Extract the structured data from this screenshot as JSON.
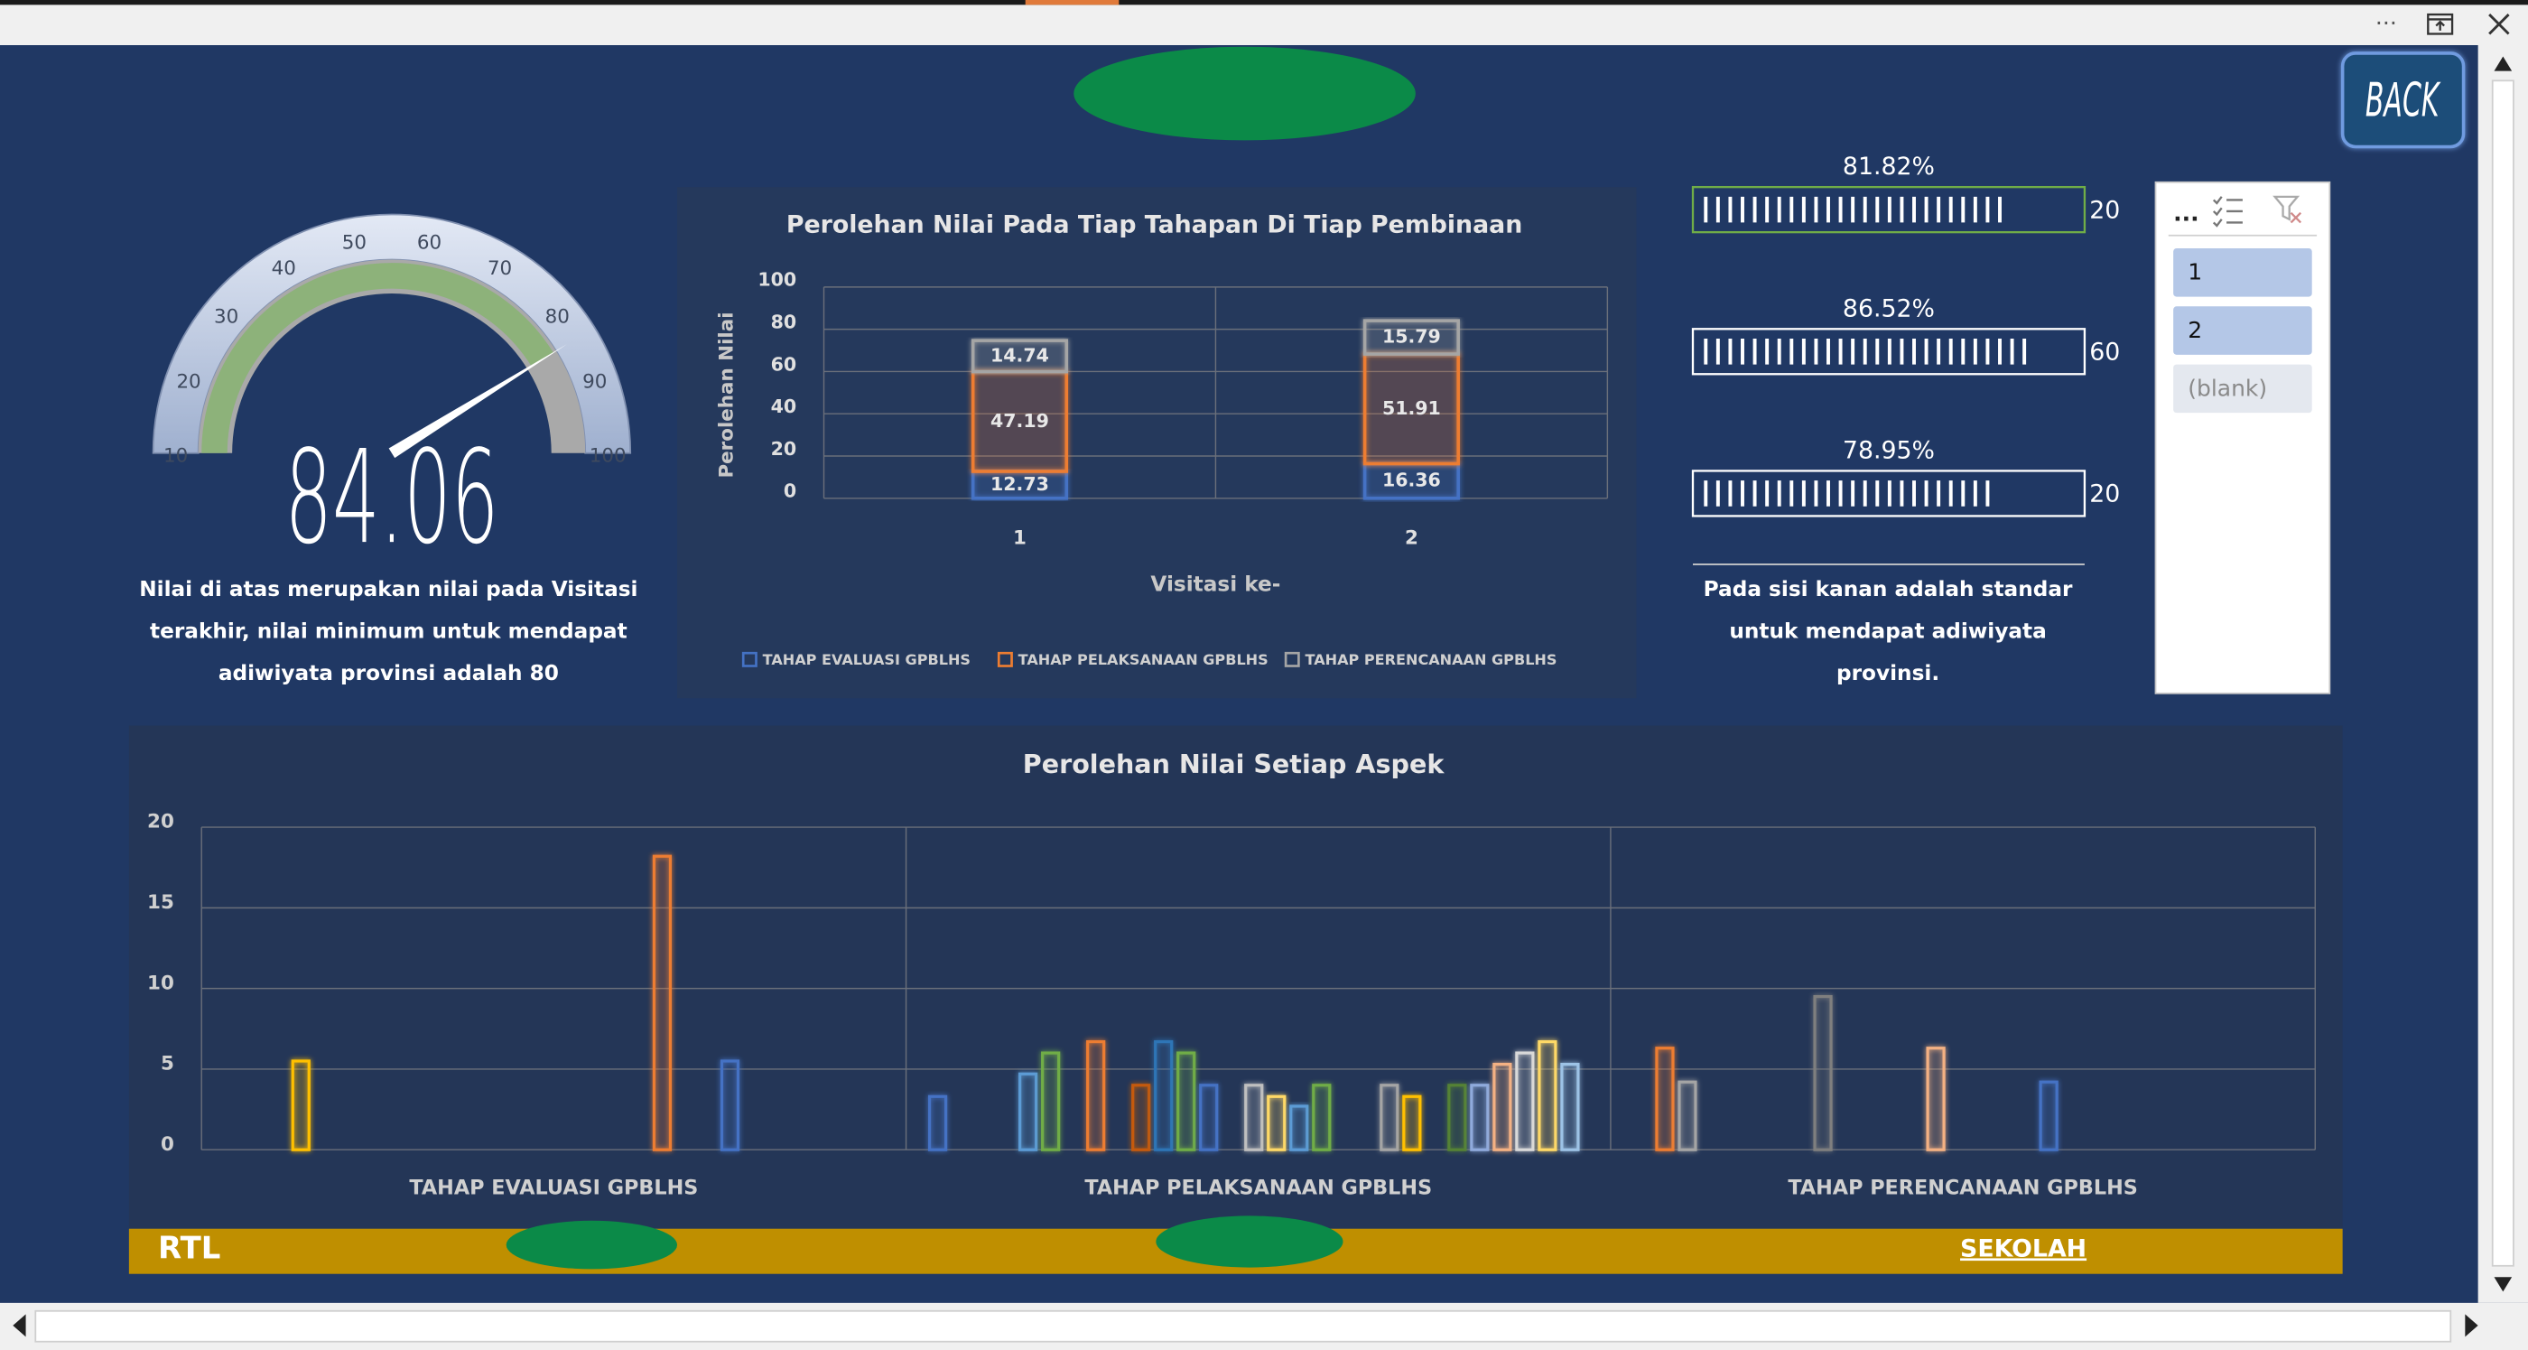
{
  "window": {
    "menu_dots": "···"
  },
  "back_button": "BACK",
  "gauge": {
    "min": 10,
    "max": 100,
    "ticks": [
      10,
      20,
      30,
      40,
      50,
      60,
      70,
      80,
      90,
      100
    ],
    "value": 84.06,
    "caption": [
      "Nilai di atas merupakan nilai pada Visitasi",
      "terakhir, nilai minimum untuk mendapat",
      "adiwiyata provinsi adalah 80"
    ]
  },
  "chart_data": [
    {
      "type": "bar",
      "stacked": true,
      "title": "Perolehan Nilai Pada Tiap Tahapan Di Tiap Pembinaan",
      "y_label": "Perolehan Nilai",
      "x_label": "Visitasi ke-",
      "categories": [
        "1",
        "2"
      ],
      "series": [
        {
          "name": "TAHAP EVALUASI GPBLHS",
          "color": "#4472c4",
          "values": [
            12.73,
            16.36
          ]
        },
        {
          "name": "TAHAP PELAKSANAAN GPBLHS",
          "color": "#ed7d31",
          "values": [
            47.19,
            51.91
          ]
        },
        {
          "name": "TAHAP PERENCANAAN GPBLHS",
          "color": "#a5a5a5",
          "values": [
            14.74,
            15.79
          ]
        }
      ],
      "ylim": [
        0,
        100
      ],
      "yticks": [
        0,
        20,
        40,
        60,
        80,
        100
      ],
      "grid": true,
      "legend": "bottom"
    },
    {
      "type": "bar",
      "stacked": false,
      "title": "Perolehan Nilai Setiap Aspek",
      "categories": [
        "TAHAP EVALUASI GPBLHS",
        "TAHAP PELAKSANAAN GPBLHS",
        "TAHAP PERENCANAAN GPBLHS"
      ],
      "series": [
        {
          "color": "#4472c4",
          "values": [
            null,
            3.3,
            null
          ]
        },
        {
          "color": "#ed7d31",
          "values": [
            null,
            null,
            6.3
          ]
        },
        {
          "color": "#a5a5a5",
          "values": [
            null,
            null,
            4.2
          ]
        },
        {
          "color": "#ffc000",
          "values": [
            5.5,
            null,
            null
          ]
        },
        {
          "color": "#5b9bd5",
          "values": [
            null,
            4.7,
            null
          ]
        },
        {
          "color": "#70ad47",
          "values": [
            null,
            6,
            null
          ]
        },
        {
          "values": [
            null,
            null,
            null
          ]
        },
        {
          "color": "#ed7d31",
          "values": [
            null,
            6.7,
            null
          ]
        },
        {
          "color": "#7f7f7f",
          "values": [
            null,
            null,
            9.5
          ]
        },
        {
          "color": "#c55a11",
          "values": [
            null,
            4,
            null
          ]
        },
        {
          "color": "#2e75b6",
          "values": [
            null,
            6.7,
            null
          ]
        },
        {
          "color": "#70ad47",
          "values": [
            null,
            6,
            null
          ]
        },
        {
          "color": "#4472c4",
          "values": [
            null,
            4,
            null
          ]
        },
        {
          "color": "#f4b183",
          "values": [
            null,
            null,
            6.3
          ]
        },
        {
          "color": "#bfbfbf",
          "values": [
            null,
            4,
            null
          ]
        },
        {
          "color": "#ffd966",
          "values": [
            null,
            3.3,
            null
          ]
        },
        {
          "color": "#5b9bd5",
          "values": [
            null,
            2.7,
            null
          ]
        },
        {
          "color": "#70ad47",
          "values": [
            null,
            4,
            null
          ]
        },
        {
          "color": "#4472c4",
          "values": [
            null,
            null,
            4.2
          ]
        },
        {
          "color": "#ed7d31",
          "values": [
            18.2,
            null,
            null
          ]
        },
        {
          "color": "#a5a5a5",
          "values": [
            null,
            4,
            null
          ]
        },
        {
          "color": "#ffc000",
          "values": [
            null,
            3.3,
            null
          ]
        },
        {
          "color": "#4472c4",
          "values": [
            5.5,
            null,
            null
          ]
        },
        {
          "color": "#548235",
          "values": [
            null,
            4,
            null
          ]
        },
        {
          "color": "#8faadc",
          "values": [
            null,
            4,
            null
          ]
        },
        {
          "color": "#f4b183",
          "values": [
            null,
            5.3,
            null
          ]
        },
        {
          "color": "#d9d9d9",
          "values": [
            null,
            6,
            null
          ]
        },
        {
          "color": "#ffd966",
          "values": [
            null,
            6.7,
            null
          ]
        },
        {
          "color": "#9dc3e6",
          "values": [
            null,
            5.3,
            null
          ]
        }
      ],
      "ylim": [
        0,
        20
      ],
      "yticks": [
        0,
        5,
        10,
        15,
        20
      ],
      "grid": true
    }
  ],
  "progress": {
    "items": [
      {
        "value": 81.82,
        "label": "81.82%",
        "target": 20,
        "selected": true
      },
      {
        "value": 86.52,
        "label": "86.52%",
        "target": 60,
        "selected": false
      },
      {
        "value": 78.95,
        "label": "78.95%",
        "target": 20,
        "selected": false
      }
    ],
    "caption": [
      "Pada sisi kanan adalah standar",
      "untuk mendapat adiwiyata",
      "provinsi."
    ]
  },
  "slicer": {
    "header": "...",
    "items": [
      {
        "label": "1",
        "selected": true
      },
      {
        "label": "2",
        "selected": true
      },
      {
        "label": "(blank)",
        "selected": false
      }
    ]
  },
  "footer": {
    "left": "RTL",
    "right": "SEKOLAH"
  }
}
